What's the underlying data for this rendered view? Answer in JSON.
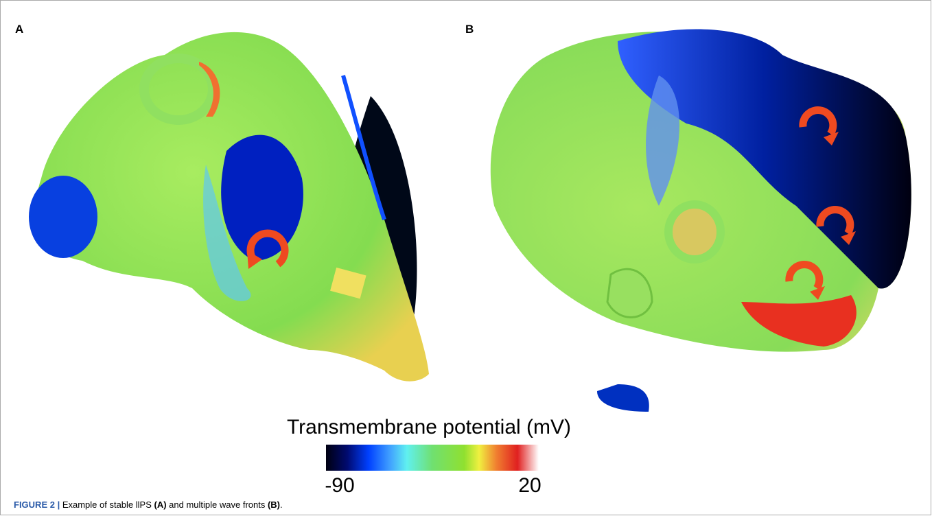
{
  "panels": [
    "A",
    "B"
  ],
  "colorbar": {
    "title": "Transmembrane potential (mV)",
    "ticks": [
      -90,
      20
    ]
  },
  "caption": {
    "label": "FIGURE 2 |",
    "segments": [
      " Example of stable llPS ",
      "(A)",
      " and multiple wave fronts ",
      "(B)",
      "."
    ]
  }
}
